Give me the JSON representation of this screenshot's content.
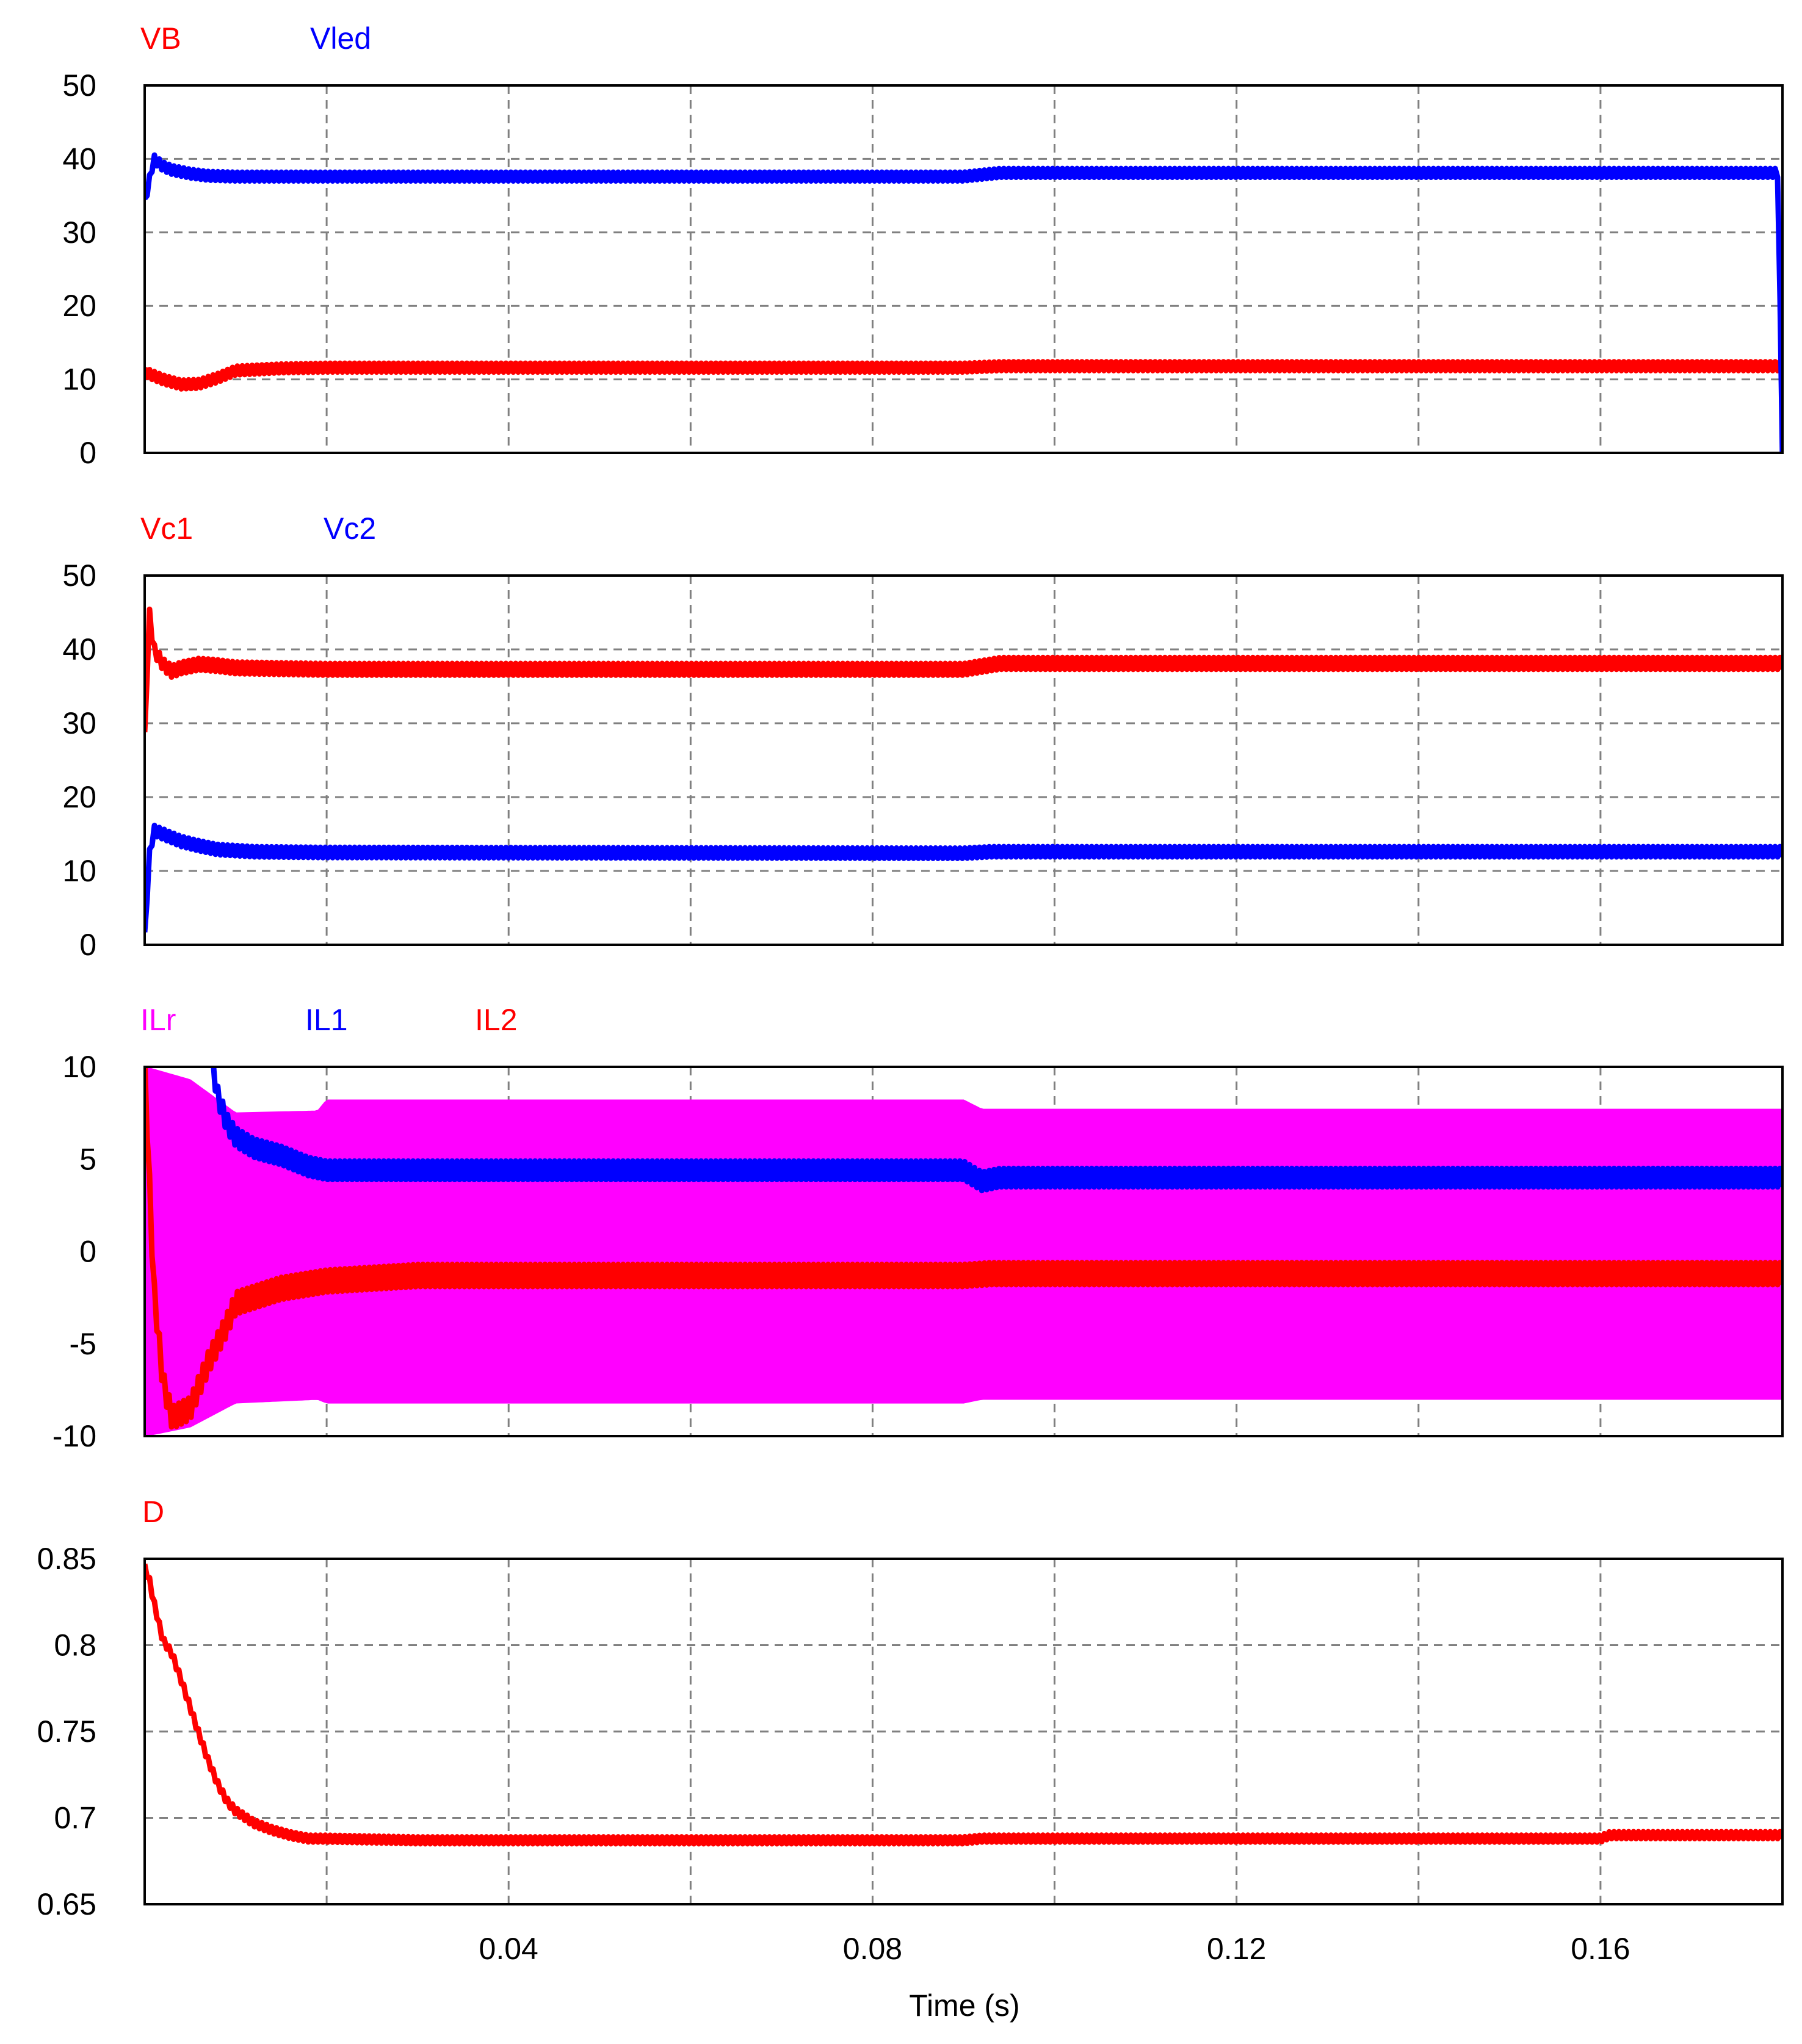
{
  "colors": {
    "red": "#ff0000",
    "blue": "#0000ff",
    "magenta": "#ff00ff",
    "grid": "#808080",
    "axis": "#000000",
    "background": "#ffffff"
  },
  "x_axis": {
    "label": "Time (s)",
    "range": [
      0,
      0.18
    ],
    "ticks": [
      0.04,
      0.08,
      0.12,
      0.16
    ],
    "tick_labels": [
      "0.04",
      "0.08",
      "0.12",
      "0.16"
    ],
    "grid_lines": [
      0.02,
      0.04,
      0.06,
      0.08,
      0.1,
      0.12,
      0.14,
      0.16
    ]
  },
  "chart_data": [
    {
      "type": "line",
      "grid": true,
      "legend_placement": "top-left",
      "ylim": [
        0,
        50
      ],
      "yticks": [
        0,
        10,
        20,
        30,
        40,
        50
      ],
      "ytick_labels": [
        "0",
        "10",
        "20",
        "30",
        "40",
        "50"
      ],
      "series": [
        {
          "name": "VB",
          "color": "#ff0000",
          "x": [
            0,
            0.001,
            0.002,
            0.004,
            0.006,
            0.008,
            0.01,
            0.015,
            0.02,
            0.09,
            0.094,
            0.18
          ],
          "y": [
            11,
            10.5,
            10,
            9.3,
            9.4,
            10.2,
            11.2,
            11.5,
            11.6,
            11.6,
            11.8,
            11.8
          ],
          "ripple": 0.6
        },
        {
          "name": "Vled",
          "color": "#0000ff",
          "x": [
            0,
            0.0005,
            0.001,
            0.002,
            0.003,
            0.005,
            0.007,
            0.01,
            0.02,
            0.09,
            0.094,
            0.1795,
            0.18
          ],
          "y": [
            34,
            37,
            40,
            39,
            38.5,
            38,
            37.7,
            37.6,
            37.6,
            37.6,
            38.1,
            38.1,
            0
          ],
          "ripple": 0.6
        }
      ]
    },
    {
      "type": "line",
      "grid": true,
      "legend_placement": "top-left",
      "ylim": [
        0,
        50
      ],
      "yticks": [
        0,
        10,
        20,
        30,
        40,
        50
      ],
      "ytick_labels": [
        "0",
        "10",
        "20",
        "30",
        "40",
        "50"
      ],
      "series": [
        {
          "name": "Vc1",
          "color": "#ff0000",
          "x": [
            0,
            0.0005,
            0.001,
            0.002,
            0.003,
            0.004,
            0.006,
            0.008,
            0.01,
            0.015,
            0.02,
            0.09,
            0.094,
            0.18
          ],
          "y": [
            28,
            45,
            40,
            38,
            37,
            37.5,
            38,
            37.8,
            37.5,
            37.4,
            37.3,
            37.3,
            38.1,
            38.1
          ],
          "ripple": 0.8
        },
        {
          "name": "Vc2",
          "color": "#0000ff",
          "x": [
            0,
            0.0005,
            0.001,
            0.002,
            0.004,
            0.006,
            0.008,
            0.012,
            0.02,
            0.09,
            0.093,
            0.18
          ],
          "y": [
            1,
            12,
            15.5,
            15,
            14,
            13.4,
            12.9,
            12.6,
            12.5,
            12.4,
            12.6,
            12.6
          ],
          "ripple": 0.7
        }
      ]
    },
    {
      "type": "line",
      "grid": true,
      "legend_placement": "top-left",
      "ylim": [
        -10,
        10
      ],
      "yticks": [
        -10,
        -5,
        0,
        5,
        10
      ],
      "ytick_labels": [
        "-10",
        "-5",
        "0",
        "5",
        "10"
      ],
      "series": [
        {
          "name": "ILr",
          "color": "#ff00ff",
          "x": [
            0,
            0.005,
            0.01,
            0.019,
            0.02,
            0.09,
            0.092,
            0.18
          ],
          "upper": [
            10,
            9.3,
            7.5,
            7.6,
            8.2,
            8.2,
            7.7,
            7.7
          ],
          "lower": [
            -10,
            -9.5,
            -8.2,
            -8.0,
            -8.2,
            -8.2,
            -8.0,
            -8.0
          ]
        },
        {
          "name": "IL1",
          "color": "#0000ff",
          "x": [
            0.0075,
            0.008,
            0.009,
            0.01,
            0.012,
            0.015,
            0.018,
            0.02,
            0.03,
            0.09,
            0.092,
            0.094,
            0.1,
            0.18
          ],
          "y": [
            10,
            8.5,
            7,
            6.2,
            5.6,
            5.2,
            4.6,
            4.4,
            4.4,
            4.4,
            3.8,
            4.0,
            4.0,
            4.0
          ],
          "ripple": 0.5
        },
        {
          "name": "IL2",
          "color": "#ff0000",
          "x": [
            0,
            0.0005,
            0.001,
            0.002,
            0.003,
            0.005,
            0.007,
            0.009,
            0.01,
            0.015,
            0.02,
            0.03,
            0.09,
            0.093,
            0.18
          ],
          "y": [
            10,
            4,
            -2,
            -7,
            -9,
            -8.5,
            -6,
            -4,
            -2.8,
            -2,
            -1.6,
            -1.3,
            -1.3,
            -1.2,
            -1.2
          ],
          "ripple": 0.6
        }
      ]
    },
    {
      "type": "line",
      "grid": true,
      "legend_placement": "top-left",
      "ylim": [
        0.65,
        0.85
      ],
      "yticks": [
        0.65,
        0.7,
        0.75,
        0.8,
        0.85
      ],
      "ytick_labels": [
        "0.65",
        "0.7",
        "0.75",
        "0.8",
        "0.85"
      ],
      "series": [
        {
          "name": "D",
          "color": "#ff0000",
          "x": [
            0,
            0.0005,
            0.001,
            0.002,
            0.003,
            0.004,
            0.005,
            0.006,
            0.007,
            0.008,
            0.009,
            0.01,
            0.012,
            0.014,
            0.016,
            0.018,
            0.02,
            0.03,
            0.09,
            0.092,
            0.16,
            0.161,
            0.18
          ],
          "y": [
            0.845,
            0.838,
            0.825,
            0.803,
            0.795,
            0.78,
            0.764,
            0.748,
            0.733,
            0.72,
            0.71,
            0.704,
            0.697,
            0.693,
            0.69,
            0.688,
            0.688,
            0.687,
            0.687,
            0.688,
            0.688,
            0.69,
            0.69
          ],
          "ripple": 0.002
        }
      ]
    }
  ]
}
